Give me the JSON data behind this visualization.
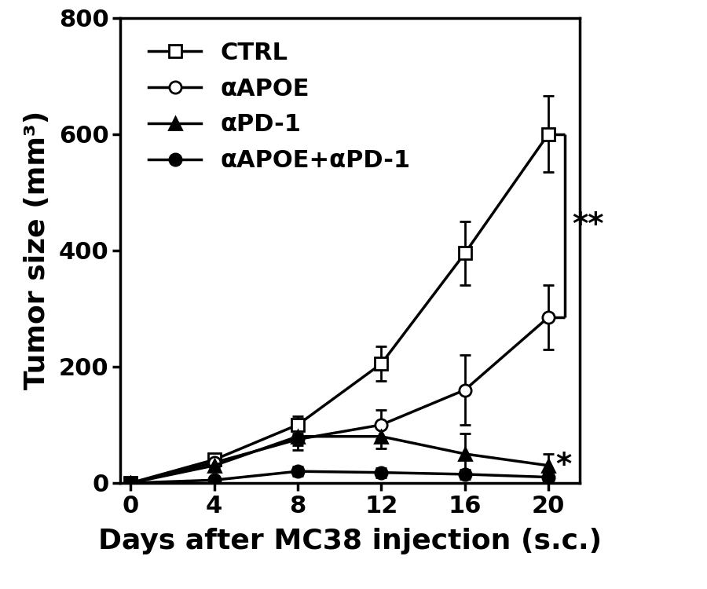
{
  "x": [
    0,
    4,
    8,
    12,
    16,
    20
  ],
  "CTRL": [
    0,
    40,
    100,
    205,
    395,
    600
  ],
  "CTRL_err": [
    0,
    8,
    15,
    30,
    55,
    65
  ],
  "aAPOE": [
    0,
    35,
    75,
    100,
    160,
    285
  ],
  "aAPOE_err": [
    0,
    8,
    18,
    25,
    60,
    55
  ],
  "aPD1": [
    0,
    30,
    80,
    80,
    50,
    30
  ],
  "aPD1_err": [
    0,
    8,
    15,
    20,
    35,
    20
  ],
  "combo": [
    0,
    5,
    20,
    18,
    15,
    10
  ],
  "combo_err": [
    0,
    3,
    8,
    8,
    8,
    8
  ],
  "ylabel": "Tumor size (mm³)",
  "xlabel": "Days after MC38 injection (s.c.)",
  "ylim": [
    0,
    800
  ],
  "yticks": [
    0,
    200,
    400,
    600,
    800
  ],
  "xticks": [
    0,
    4,
    8,
    12,
    16,
    20
  ],
  "legend_labels": [
    "CTRL",
    "αAPOE",
    "αPD-1",
    "αAPOE+αPD-1"
  ],
  "line_color": "#000000",
  "background_color": "#ffffff",
  "significance_bracket_y_top": 600,
  "significance_bracket_y_bot": 285,
  "significance_text_double": "**",
  "significance_text_single": "*"
}
